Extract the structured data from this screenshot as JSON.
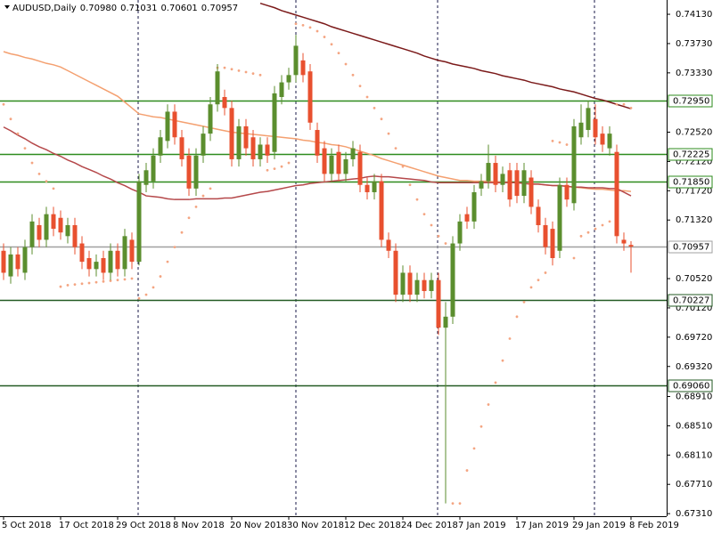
{
  "chart_data": {
    "type": "candlestick",
    "title": "AUDUSD,Daily",
    "header_values": [
      "0.70980",
      "0.71031",
      "0.70601",
      "0.70957"
    ],
    "categories": [
      "5 Oct 2018",
      null,
      null,
      null,
      null,
      null,
      null,
      null,
      "17 Oct 2018",
      null,
      null,
      null,
      null,
      null,
      null,
      null,
      "29 Oct 2018",
      null,
      null,
      null,
      null,
      null,
      null,
      null,
      "8 Nov 2018",
      null,
      null,
      null,
      null,
      null,
      null,
      null,
      "20 Nov 2018",
      null,
      null,
      null,
      null,
      null,
      null,
      null,
      "30 Nov 2018",
      null,
      null,
      null,
      null,
      null,
      null,
      null,
      "12 Dec 2018",
      null,
      null,
      null,
      null,
      null,
      null,
      null,
      "24 Dec 2018",
      null,
      null,
      null,
      null,
      null,
      null,
      null,
      "7 Jan 2019",
      null,
      null,
      null,
      null,
      null,
      null,
      null,
      "17 Jan 2019",
      null,
      null,
      null,
      null,
      null,
      null,
      null,
      "29 Jan 2019",
      null,
      null,
      null,
      null,
      null,
      null,
      null,
      "8 Feb 2019"
    ],
    "open": [
      0.709,
      0.7055,
      0.7085,
      0.706,
      0.7095,
      0.7125,
      0.7105,
      0.714,
      0.7135,
      0.711,
      0.7125,
      0.71,
      0.708,
      0.7065,
      0.708,
      0.706,
      0.709,
      0.7065,
      0.7105,
      0.7075,
      0.718,
      0.7185,
      0.722,
      0.724,
      0.728,
      0.7245,
      0.722,
      0.7175,
      0.722,
      0.725,
      0.729,
      0.73,
      0.7285,
      0.7215,
      0.726,
      0.7245,
      0.7215,
      0.7235,
      0.7225,
      0.73,
      0.732,
      0.733,
      0.735,
      0.7335,
      0.7255,
      0.723,
      0.7195,
      0.7225,
      0.7195,
      0.7215,
      0.7225,
      0.718,
      0.717,
      0.7185,
      0.7105,
      0.709,
      0.703,
      0.706,
      0.703,
      0.705,
      0.7035,
      0.705,
      0.6985,
      0.7,
      0.71,
      0.714,
      0.713,
      0.7175,
      0.7185,
      0.721,
      0.718,
      0.72,
      0.72,
      0.7165,
      0.719,
      0.715,
      0.7125,
      0.712,
      0.709,
      0.718,
      0.7155,
      0.7245,
      0.7255,
      0.727,
      0.725,
      0.723,
      0.7225,
      0.7105,
      0.7098
    ],
    "high": [
      0.71,
      0.7095,
      0.7095,
      0.7105,
      0.714,
      0.7135,
      0.715,
      0.715,
      0.7145,
      0.7135,
      0.7135,
      0.711,
      0.709,
      0.7085,
      0.709,
      0.71,
      0.71,
      0.712,
      0.7115,
      0.7195,
      0.721,
      0.723,
      0.7255,
      0.729,
      0.729,
      0.7255,
      0.723,
      0.723,
      0.726,
      0.73,
      0.7345,
      0.731,
      0.7295,
      0.727,
      0.727,
      0.7255,
      0.7245,
      0.7245,
      0.7315,
      0.733,
      0.734,
      0.7385,
      0.736,
      0.7345,
      0.7265,
      0.724,
      0.723,
      0.7235,
      0.7225,
      0.724,
      0.7235,
      0.719,
      0.7195,
      0.7195,
      0.7115,
      0.71,
      0.707,
      0.707,
      0.706,
      0.706,
      0.706,
      0.706,
      0.702,
      0.711,
      0.714,
      0.715,
      0.718,
      0.7195,
      0.7235,
      0.722,
      0.7205,
      0.721,
      0.721,
      0.721,
      0.72,
      0.716,
      0.7135,
      0.713,
      0.719,
      0.719,
      0.727,
      0.729,
      0.7295,
      0.729,
      0.726,
      0.726,
      0.7235,
      0.7115,
      0.71031
    ],
    "low": [
      0.705,
      0.7045,
      0.7055,
      0.705,
      0.7085,
      0.7095,
      0.7095,
      0.711,
      0.7105,
      0.71,
      0.7085,
      0.7065,
      0.7055,
      0.7055,
      0.705,
      0.705,
      0.7055,
      0.7055,
      0.7065,
      0.707,
      0.717,
      0.7175,
      0.721,
      0.723,
      0.7235,
      0.7205,
      0.7165,
      0.7165,
      0.721,
      0.724,
      0.728,
      0.7275,
      0.7205,
      0.7205,
      0.722,
      0.7205,
      0.7205,
      0.721,
      0.7215,
      0.729,
      0.731,
      0.732,
      0.732,
      0.7255,
      0.721,
      0.7185,
      0.7185,
      0.7185,
      0.7185,
      0.7205,
      0.717,
      0.716,
      0.716,
      0.7095,
      0.708,
      0.702,
      0.702,
      0.702,
      0.702,
      0.7025,
      0.7025,
      0.6975,
      0.6745,
      0.699,
      0.709,
      0.712,
      0.712,
      0.7165,
      0.7175,
      0.717,
      0.717,
      0.715,
      0.7155,
      0.7155,
      0.714,
      0.7115,
      0.7085,
      0.707,
      0.708,
      0.715,
      0.7145,
      0.7235,
      0.7245,
      0.7235,
      0.7225,
      0.722,
      0.71,
      0.709,
      0.70601
    ],
    "close": [
      0.706,
      0.7085,
      0.7065,
      0.7095,
      0.713,
      0.7105,
      0.714,
      0.712,
      0.7115,
      0.7125,
      0.7095,
      0.7075,
      0.7065,
      0.7075,
      0.706,
      0.709,
      0.7065,
      0.711,
      0.7075,
      0.7185,
      0.72,
      0.722,
      0.7245,
      0.728,
      0.7245,
      0.7215,
      0.7175,
      0.722,
      0.725,
      0.729,
      0.7335,
      0.7285,
      0.7215,
      0.726,
      0.723,
      0.7215,
      0.7235,
      0.722,
      0.7305,
      0.732,
      0.733,
      0.737,
      0.733,
      0.7265,
      0.722,
      0.7195,
      0.722,
      0.7195,
      0.7215,
      0.723,
      0.718,
      0.717,
      0.7185,
      0.7105,
      0.709,
      0.703,
      0.706,
      0.703,
      0.705,
      0.7035,
      0.705,
      0.6985,
      0.7,
      0.71,
      0.713,
      0.713,
      0.717,
      0.7185,
      0.721,
      0.718,
      0.7195,
      0.716,
      0.7165,
      0.72,
      0.715,
      0.7125,
      0.7095,
      0.708,
      0.718,
      0.716,
      0.726,
      0.7265,
      0.7285,
      0.7245,
      0.7235,
      0.725,
      0.711,
      0.71,
      0.70957
    ],
    "up_color": "#5b8e2e",
    "down_color": "#e8502f",
    "overlays": [
      {
        "color": "#7b1a1a",
        "values": [
          null,
          null,
          null,
          null,
          null,
          null,
          null,
          null,
          null,
          null,
          null,
          null,
          null,
          null,
          null,
          null,
          null,
          null,
          null,
          null,
          null,
          null,
          null,
          null,
          null,
          null,
          null,
          null,
          null,
          null,
          null,
          null,
          null,
          null,
          null,
          null,
          0.7428,
          0.7425,
          0.7422,
          0.7418,
          0.7415,
          0.7412,
          0.7409,
          0.7406,
          0.7403,
          0.74,
          0.7396,
          0.7393,
          0.739,
          0.7387,
          0.7384,
          0.7381,
          0.7378,
          0.7375,
          0.7372,
          0.7369,
          0.7366,
          0.7363,
          0.736,
          0.7356,
          0.7353,
          0.735,
          0.7348,
          0.7345,
          0.7343,
          0.7341,
          0.7339,
          0.7336,
          0.7334,
          0.7332,
          0.7329,
          0.7327,
          0.7325,
          0.7323,
          0.732,
          0.7318,
          0.7316,
          0.7314,
          0.7311,
          0.7309,
          0.7307,
          0.7304,
          0.7301,
          0.7298,
          0.7296,
          0.7293,
          0.729,
          0.7287,
          0.7284
        ]
      },
      {
        "color": "#f4a070",
        "values": [
          0.7362,
          0.7359,
          0.7357,
          0.7354,
          0.7352,
          0.7349,
          0.7346,
          0.7344,
          0.7341,
          0.7336,
          0.7331,
          0.7326,
          0.7321,
          0.7316,
          0.7311,
          0.7306,
          0.7301,
          0.7293,
          0.7285,
          0.7277,
          0.7275,
          0.7273,
          0.7272,
          0.727,
          0.7268,
          0.7266,
          0.7264,
          0.7262,
          0.726,
          0.7258,
          0.7256,
          0.7254,
          0.7252,
          0.7251,
          0.725,
          0.7249,
          0.7248,
          0.7247,
          0.7246,
          0.7245,
          0.7244,
          0.7243,
          0.7241,
          0.724,
          0.7238,
          0.7237,
          0.7235,
          0.7234,
          0.7232,
          0.7229,
          0.7226,
          0.7223,
          0.722,
          0.7216,
          0.7213,
          0.721,
          0.7207,
          0.7204,
          0.7201,
          0.7198,
          0.7195,
          0.7192,
          0.719,
          0.7188,
          0.7186,
          0.7186,
          0.7185,
          0.7185,
          0.7185,
          0.7184,
          0.7184,
          0.7183,
          0.7183,
          0.7182,
          0.7181,
          0.7181,
          0.718,
          0.7179,
          0.7179,
          0.7178,
          0.7177,
          0.7176,
          0.7175,
          0.7174,
          0.7174,
          0.7173,
          0.7172,
          0.7172,
          0.7171
        ]
      },
      {
        "color": "#b5484a",
        "values": [
          0.7259,
          0.7254,
          0.7248,
          0.7243,
          0.7237,
          0.7232,
          0.7228,
          0.7223,
          0.7219,
          0.7214,
          0.721,
          0.7205,
          0.7201,
          0.7197,
          0.7192,
          0.7188,
          0.7183,
          0.7179,
          0.7174,
          0.717,
          0.7165,
          0.7164,
          0.7163,
          0.7161,
          0.716,
          0.716,
          0.716,
          0.7161,
          0.7161,
          0.7161,
          0.7161,
          0.7162,
          0.7162,
          0.7164,
          0.7166,
          0.7168,
          0.717,
          0.7171,
          0.7173,
          0.7175,
          0.7177,
          0.7179,
          0.718,
          0.7182,
          0.7183,
          0.7184,
          0.7185,
          0.7186,
          0.7187,
          0.7188,
          0.7189,
          0.7191,
          0.7192,
          0.7191,
          0.7191,
          0.719,
          0.7189,
          0.7188,
          0.7187,
          0.7186,
          0.7184,
          0.7183,
          0.7183,
          0.7183,
          0.7183,
          0.7183,
          0.7183,
          0.7183,
          0.7183,
          0.7183,
          0.7183,
          0.7183,
          0.7183,
          0.7182,
          0.7181,
          0.7181,
          0.718,
          0.7179,
          0.7179,
          0.7178,
          0.7177,
          0.7177,
          0.7176,
          0.7176,
          0.7176,
          0.7175,
          0.7175,
          0.717,
          0.7165
        ]
      }
    ],
    "sar": {
      "color": "#f4a582",
      "values": [
        0.729,
        0.727,
        0.725,
        0.723,
        0.721,
        0.7195,
        0.7185,
        0.7175,
        0.7041,
        0.7043,
        0.7044,
        0.7045,
        0.7046,
        0.7047,
        0.7048,
        0.7049,
        0.705,
        0.7051,
        0.7052,
        0.7025,
        0.703,
        0.704,
        0.7055,
        0.7075,
        0.7095,
        0.7115,
        0.7135,
        0.715,
        0.7165,
        0.7175,
        0.734,
        0.734,
        0.7338,
        0.7336,
        0.7334,
        0.7332,
        0.733,
        0.72,
        0.7202,
        0.7205,
        0.721,
        0.74,
        0.7398,
        0.7395,
        0.739,
        0.7382,
        0.7372,
        0.736,
        0.7345,
        0.733,
        0.7315,
        0.73,
        0.7285,
        0.727,
        0.725,
        0.723,
        0.7205,
        0.718,
        0.716,
        0.714,
        0.7125,
        0.711,
        0.71,
        0.6745,
        0.6745,
        0.679,
        0.682,
        0.685,
        0.688,
        0.691,
        0.694,
        0.697,
        0.7,
        0.702,
        0.704,
        0.705,
        0.706,
        0.724,
        0.7238,
        0.7235,
        0.708,
        0.711,
        0.7115,
        0.712,
        0.7125,
        0.713,
        0.729,
        0.729,
        0.7285
      ]
    },
    "levels": [
      {
        "value": 0.7295,
        "label": "0.72950",
        "color": "#2e8b1e"
      },
      {
        "value": 0.72225,
        "label": "0.72225",
        "color": "#2e8b1e"
      },
      {
        "value": 0.7185,
        "label": "0.71850",
        "color": "#2e8b1e"
      },
      {
        "value": 0.70957,
        "label": "0.70957",
        "color": "#a0a0a0"
      },
      {
        "value": 0.70227,
        "label": "0.70227",
        "color": "#235a23"
      },
      {
        "value": 0.6906,
        "label": "0.69060",
        "color": "#235a23"
      }
    ],
    "ylim": [
      0.67275,
      0.74325
    ],
    "yticks": [
      {
        "value": 0.7413,
        "label": "0.74130"
      },
      {
        "value": 0.7373,
        "label": "0.73730"
      },
      {
        "value": 0.7333,
        "label": "0.73330"
      },
      {
        "value": 0.7252,
        "label": "0.72520"
      },
      {
        "value": 0.7212,
        "label": "0.72120"
      },
      {
        "value": 0.7172,
        "label": "0.71720"
      },
      {
        "value": 0.7132,
        "label": "0.71320"
      },
      {
        "value": 0.7052,
        "label": "0.70520"
      },
      {
        "value": 0.7012,
        "label": "0.70120"
      },
      {
        "value": 0.6972,
        "label": "0.69720"
      },
      {
        "value": 0.6932,
        "label": "0.69320"
      },
      {
        "value": 0.6891,
        "label": "0.68910"
      },
      {
        "value": 0.6851,
        "label": "0.68510"
      },
      {
        "value": 0.6811,
        "label": "0.68110"
      },
      {
        "value": 0.6771,
        "label": "0.67710"
      },
      {
        "value": 0.6731,
        "label": "0.67310"
      }
    ],
    "grid": false
  }
}
